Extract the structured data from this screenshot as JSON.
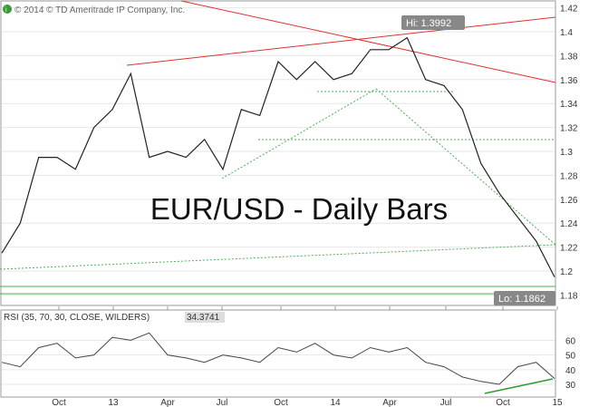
{
  "copyright": "© 2014 © TD Ameritrade IP Company, Inc.",
  "chart_data": [
    {
      "type": "line",
      "title": "EUR/USD - Daily Bars",
      "xlabel": "",
      "ylabel": "",
      "ylim": [
        1.172,
        1.425
      ],
      "yticks": [
        "1.42",
        "1.4",
        "1.38",
        "1.36",
        "1.34",
        "1.32",
        "1.3",
        "1.28",
        "1.26",
        "1.24",
        "1.22",
        "1.2",
        "1.18"
      ],
      "xticks": [
        "Oct",
        "13",
        "Apr",
        "Jul",
        "Oct",
        "14",
        "Apr",
        "Jul",
        "Oct",
        "15"
      ],
      "annotations": {
        "high": "Hi: 1.3992",
        "low": "Lo: 1.1862"
      },
      "grid": true,
      "colors": {
        "price": "#222222",
        "resistance": "#e03030",
        "support": "#4caf50"
      },
      "x": [
        "2012-07",
        "2012-08",
        "2012-09",
        "2012-10",
        "2012-11",
        "2012-12",
        "2013-01",
        "2013-02",
        "2013-03",
        "2013-04",
        "2013-05",
        "2013-06",
        "2013-07",
        "2013-08",
        "2013-09",
        "2013-10",
        "2013-11",
        "2013-12",
        "2014-01",
        "2014-02",
        "2014-03",
        "2014-04",
        "2014-05",
        "2014-06",
        "2014-07",
        "2014-08",
        "2014-09",
        "2014-10",
        "2014-11",
        "2014-12",
        "2014-12-31"
      ],
      "values": [
        1.215,
        1.24,
        1.295,
        1.295,
        1.285,
        1.32,
        1.335,
        1.365,
        1.295,
        1.3,
        1.295,
        1.31,
        1.285,
        1.335,
        1.33,
        1.375,
        1.36,
        1.375,
        1.36,
        1.365,
        1.385,
        1.385,
        1.395,
        1.36,
        1.355,
        1.335,
        1.29,
        1.265,
        1.245,
        1.225,
        1.195
      ]
    },
    {
      "type": "line",
      "title": "RSI (35, 70, 30, CLOSE, WILDERS)",
      "value_label": "34.3741",
      "ylim": [
        22,
        72
      ],
      "yticks": [
        "60",
        "50",
        "40",
        "30"
      ],
      "values": [
        45,
        42,
        55,
        58,
        48,
        50,
        62,
        60,
        65,
        50,
        48,
        45,
        50,
        48,
        45,
        55,
        52,
        58,
        50,
        48,
        55,
        52,
        55,
        45,
        42,
        35,
        32,
        30,
        42,
        45,
        34
      ]
    }
  ]
}
